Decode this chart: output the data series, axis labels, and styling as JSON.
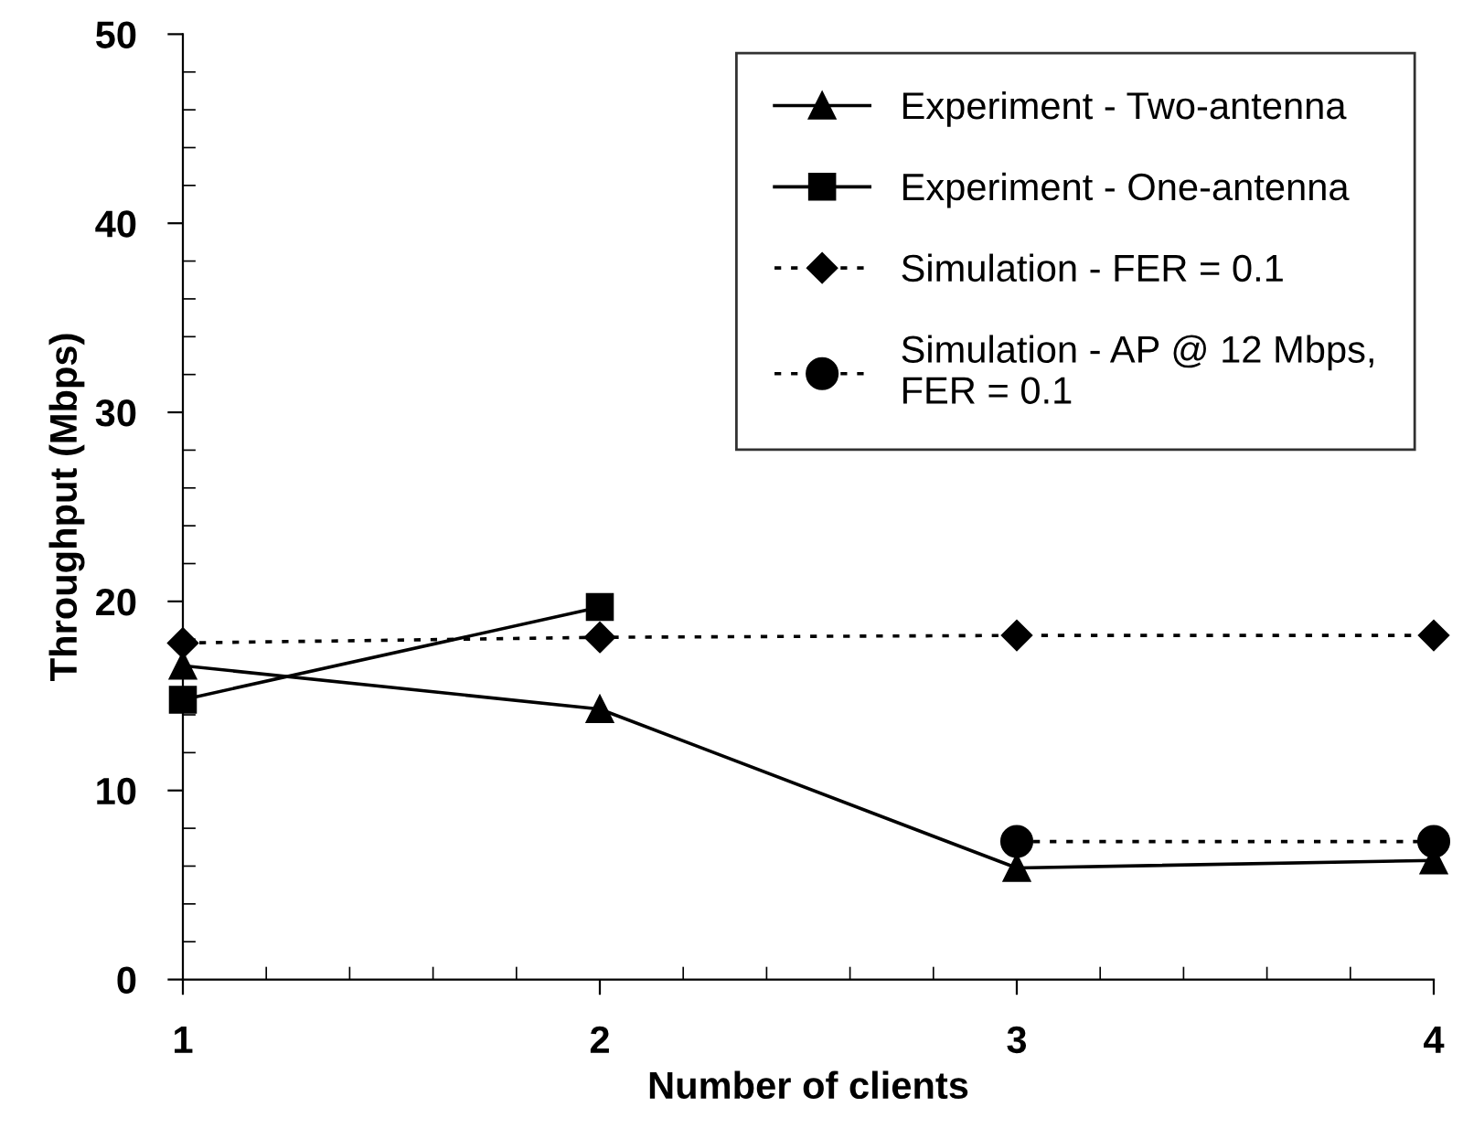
{
  "chart_data": {
    "type": "line",
    "xlabel": "Number of clients",
    "ylabel": "Throughput (Mbps)",
    "xlim": [
      1,
      4
    ],
    "xticks": [
      1,
      2,
      3,
      4
    ],
    "ylim": [
      0,
      50
    ],
    "yticks": [
      0,
      10,
      20,
      30,
      40,
      50
    ],
    "grid": false,
    "legend": "top right",
    "series": [
      {
        "name": "Experiment - Two-antenna",
        "color": "#000000",
        "marker": "triangle",
        "line_style": "solid",
        "x": [
          1,
          2,
          3,
          4
        ],
        "values": [
          16.6,
          14.3,
          5.9,
          6.3
        ]
      },
      {
        "name": "Experiment - One-antenna",
        "color": "#000000",
        "marker": "square",
        "line_style": "solid",
        "x": [
          1,
          2
        ],
        "values": [
          14.8,
          19.7
        ]
      },
      {
        "name": "Simulation - FER = 0.1",
        "color": "#000000",
        "marker": "diamond",
        "line_style": "dotted",
        "x": [
          1,
          2,
          3,
          4
        ],
        "values": [
          17.8,
          18.1,
          18.2,
          18.2
        ]
      },
      {
        "name": "Simulation - AP @ 12 Mbps,\nFER = 0.1",
        "color": "#000000",
        "marker": "circle",
        "line_style": "dotted",
        "x": [
          3,
          4
        ],
        "values": [
          7.3,
          7.3
        ]
      }
    ]
  }
}
